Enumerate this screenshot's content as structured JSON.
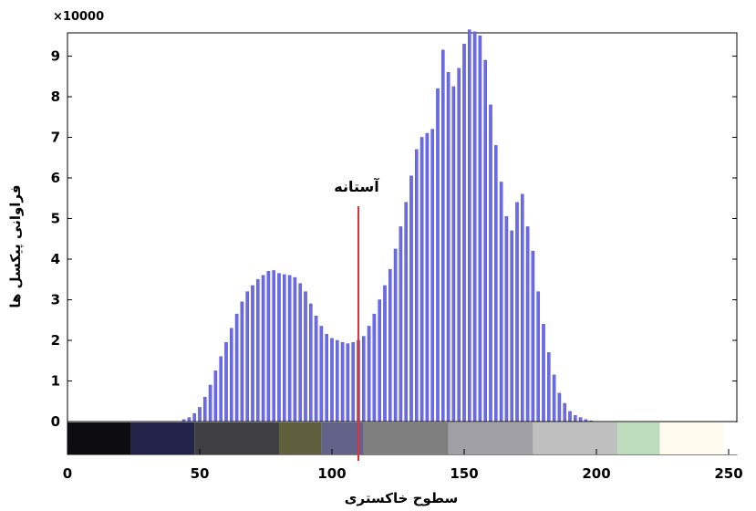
{
  "chart_data": {
    "type": "bar",
    "xlabel": "سطوح خاکستری",
    "ylabel": "فراوانی پیکسل ها",
    "y_multiplier": "×10000",
    "xlim": [
      0,
      255
    ],
    "ylim": [
      0,
      9.6
    ],
    "x_ticks": [
      0,
      50,
      100,
      150,
      200,
      250
    ],
    "y_ticks": [
      0,
      1,
      2,
      3,
      4,
      5,
      6,
      7,
      8,
      9
    ],
    "grid": false,
    "bar_color": "#6b6be6",
    "threshold": {
      "label": "آستانه",
      "value": 110,
      "color": "#e0303a"
    },
    "histogram": {
      "x": [
        44,
        46,
        48,
        50,
        52,
        54,
        56,
        58,
        60,
        62,
        64,
        66,
        68,
        70,
        72,
        74,
        76,
        78,
        80,
        82,
        84,
        86,
        88,
        90,
        92,
        94,
        96,
        98,
        100,
        102,
        104,
        106,
        108,
        110,
        112,
        114,
        116,
        118,
        120,
        122,
        124,
        126,
        128,
        130,
        132,
        134,
        136,
        138,
        140,
        142,
        144,
        146,
        148,
        150,
        152,
        154,
        156,
        158,
        160,
        162,
        164,
        166,
        168,
        170,
        172,
        174,
        176,
        178,
        180,
        182,
        184,
        186,
        188,
        190,
        192,
        194,
        196,
        198
      ],
      "values": [
        0.05,
        0.1,
        0.2,
        0.35,
        0.6,
        0.9,
        1.25,
        1.6,
        1.95,
        2.3,
        2.65,
        2.95,
        3.2,
        3.35,
        3.5,
        3.6,
        3.7,
        3.72,
        3.65,
        3.62,
        3.6,
        3.55,
        3.4,
        3.2,
        2.9,
        2.6,
        2.35,
        2.15,
        2.05,
        2.0,
        1.95,
        1.92,
        1.95,
        2.0,
        2.1,
        2.35,
        2.65,
        3.0,
        3.35,
        3.75,
        4.25,
        4.8,
        5.4,
        6.05,
        6.7,
        7.0,
        7.1,
        7.2,
        8.2,
        9.15,
        8.6,
        8.25,
        8.7,
        9.3,
        9.65,
        9.6,
        9.5,
        8.9,
        7.8,
        6.8,
        5.9,
        5.05,
        4.7,
        5.4,
        5.6,
        4.8,
        4.2,
        3.2,
        2.4,
        1.7,
        1.15,
        0.7,
        0.45,
        0.25,
        0.15,
        0.1,
        0.05,
        0.02
      ]
    },
    "colorbar": [
      {
        "from": 0,
        "to": 24,
        "color": "#0d0d0f"
      },
      {
        "from": 24,
        "to": 48,
        "color": "#23234a"
      },
      {
        "from": 48,
        "to": 80,
        "color": "#3f3f42"
      },
      {
        "from": 80,
        "to": 96,
        "color": "#5f5f3e"
      },
      {
        "from": 96,
        "to": 112,
        "color": "#63638a"
      },
      {
        "from": 112,
        "to": 144,
        "color": "#7f7f80"
      },
      {
        "from": 144,
        "to": 176,
        "color": "#a0a0a6"
      },
      {
        "from": 176,
        "to": 208,
        "color": "#bfbfbf"
      },
      {
        "from": 208,
        "to": 224,
        "color": "#bcdcbc"
      },
      {
        "from": 224,
        "to": 248,
        "color": "#fffbef"
      },
      {
        "from": 248,
        "to": 255,
        "color": "#ffffff"
      }
    ]
  }
}
